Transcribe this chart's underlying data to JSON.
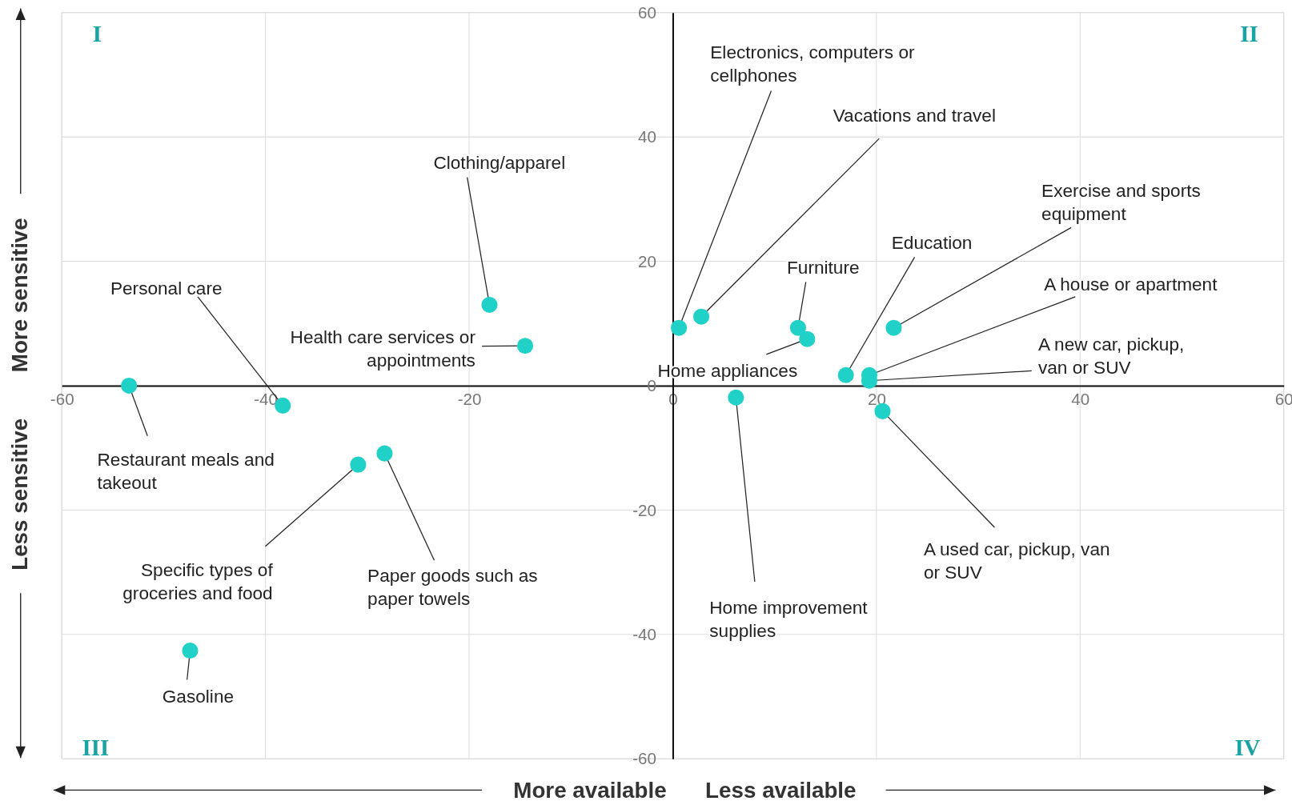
{
  "chart_data": {
    "type": "scatter",
    "marker": "circle",
    "grid": true,
    "x": [
      -18,
      -14.5,
      -53.4,
      -38.3,
      -30.9,
      -28.3,
      -47.4,
      0.6,
      2.8,
      12.3,
      13.2,
      17,
      21.7,
      19.3,
      19.3,
      20.6,
      6.2
    ],
    "series": [
      {
        "color": "#1fd1c7",
        "values": [
          13,
          6.4,
          0,
          -3.2,
          -12.7,
          -10.9,
          -42.6,
          9.3,
          11.1,
          9.3,
          7.5,
          1.7,
          9.3,
          1.7,
          0.8,
          -4.1,
          -1.9
        ]
      }
    ],
    "xlim": [
      -60,
      60
    ],
    "ylim": [
      -60,
      60
    ],
    "xticks": [
      -60,
      -40,
      -20,
      0,
      20,
      40,
      60
    ],
    "yticks": [
      -60,
      -40,
      -20,
      0,
      20,
      40,
      60
    ],
    "annotations": [
      {
        "text": "Clothing/apparel",
        "x": -18,
        "y": 13
      },
      {
        "text": "Health care services or appointments",
        "x": -14.5,
        "y": 6.4
      },
      {
        "text": "Restaurant meals and takeout",
        "x": -53.4,
        "y": 0
      },
      {
        "text": "Personal care",
        "x": -38.3,
        "y": -3.2
      },
      {
        "text": "Specific types of groceries and food",
        "x": -30.9,
        "y": -12.7
      },
      {
        "text": "Paper goods such as paper towels",
        "x": -28.3,
        "y": -10.9
      },
      {
        "text": "Gasoline",
        "x": -47.4,
        "y": -42.6
      },
      {
        "text": "Electronics, computers or cellphones",
        "x": 0.6,
        "y": 9.3
      },
      {
        "text": "Vacations and travel",
        "x": 2.8,
        "y": 11.1
      },
      {
        "text": "Furniture",
        "x": 12.3,
        "y": 9.3
      },
      {
        "text": "Home appliances",
        "x": 13.2,
        "y": 7.5
      },
      {
        "text": "Education",
        "x": 17,
        "y": 1.7
      },
      {
        "text": "Exercise and sports equipment",
        "x": 21.7,
        "y": 9.3
      },
      {
        "text": "A house or apartment",
        "x": 19.3,
        "y": 1.7
      },
      {
        "text": "A new car, pickup, van or SUV",
        "x": 19.3,
        "y": 0.8
      },
      {
        "text": "A used car, pickup, van or SUV",
        "x": 20.6,
        "y": -4.1
      },
      {
        "text": "Home improvement supplies",
        "x": 6.2,
        "y": -1.9
      },
      "I",
      "II",
      "III",
      "IV",
      "More sensitive",
      "Less sensitive",
      "More available",
      "Less available"
    ]
  }
}
